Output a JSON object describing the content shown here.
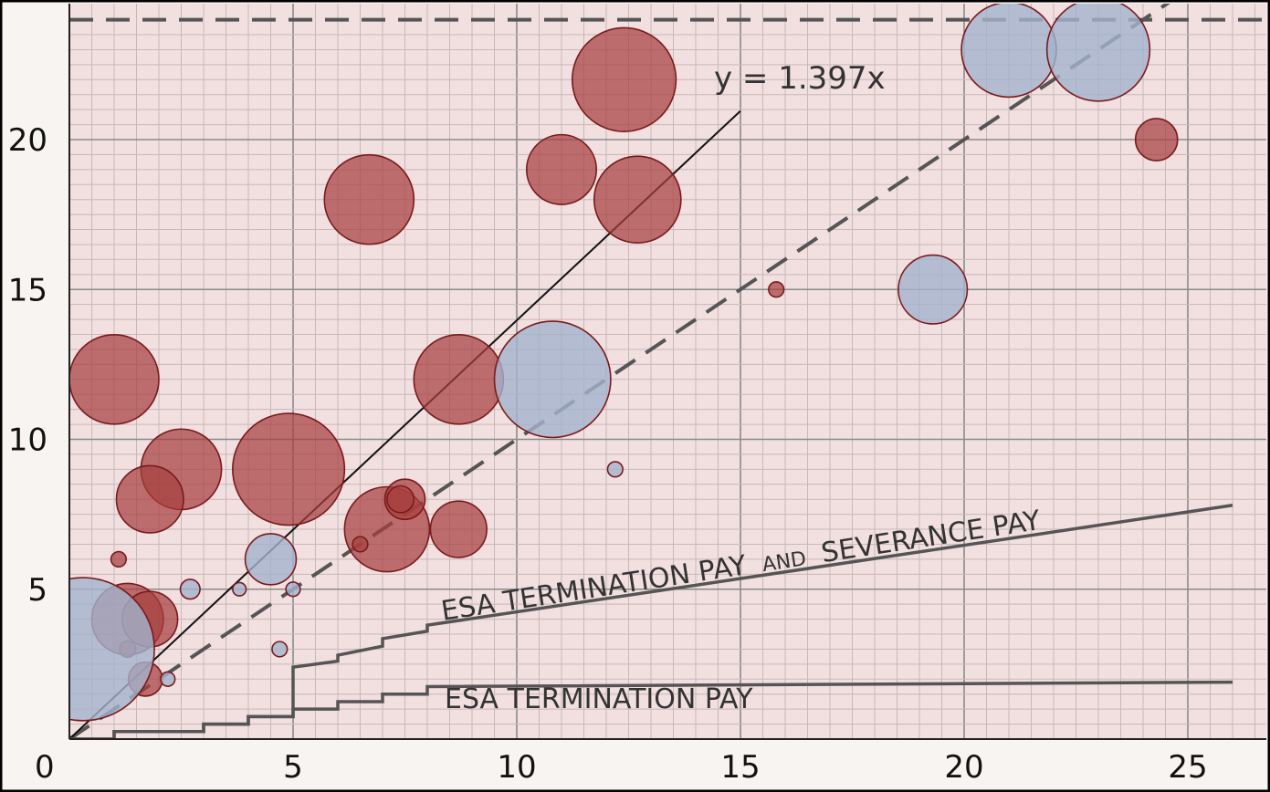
{
  "chart_data": {
    "type": "scatter",
    "title": "",
    "xlabel": "",
    "ylabel": "",
    "xlim": [
      0,
      26
    ],
    "ylim": [
      0,
      24
    ],
    "x_ticks": [
      "0",
      "5",
      "10",
      "15",
      "20",
      "25"
    ],
    "y_ticks": [
      "5",
      "10",
      "15",
      "20"
    ],
    "grid": true,
    "colors": {
      "red_fill": "#a6403f",
      "red_edge": "#7a1a1c",
      "blue_fill": "#a3b3cd",
      "blue_edge": "#7a1a1c",
      "plot_bg": "#f2dfe0",
      "grid_major": "#8a8a8a",
      "grid_minor": "#c8b8b8"
    },
    "bubbles": [
      {
        "x": 1.0,
        "y": 12,
        "r": 1.0,
        "group": "red"
      },
      {
        "x": 2.5,
        "y": 9,
        "r": 0.9,
        "group": "red"
      },
      {
        "x": 1.8,
        "y": 8,
        "r": 0.75,
        "group": "red"
      },
      {
        "x": 4.9,
        "y": 9,
        "r": 1.25,
        "group": "red"
      },
      {
        "x": 6.7,
        "y": 18,
        "r": 1.0,
        "group": "red"
      },
      {
        "x": 7.1,
        "y": 7,
        "r": 0.95,
        "group": "red"
      },
      {
        "x": 7.5,
        "y": 8,
        "r": 0.45,
        "group": "red"
      },
      {
        "x": 7.4,
        "y": 8,
        "r": 0.3,
        "group": "red"
      },
      {
        "x": 8.7,
        "y": 7,
        "r": 0.63,
        "group": "red"
      },
      {
        "x": 8.7,
        "y": 12,
        "r": 1.0,
        "group": "red"
      },
      {
        "x": 11.0,
        "y": 19,
        "r": 0.78,
        "group": "red"
      },
      {
        "x": 12.4,
        "y": 22,
        "r": 1.16,
        "group": "red"
      },
      {
        "x": 12.7,
        "y": 18,
        "r": 0.97,
        "group": "red"
      },
      {
        "x": 1.3,
        "y": 4,
        "r": 0.8,
        "group": "red"
      },
      {
        "x": 1.8,
        "y": 4,
        "r": 0.62,
        "group": "red"
      },
      {
        "x": 1.7,
        "y": 2,
        "r": 0.38,
        "group": "red"
      },
      {
        "x": 1.1,
        "y": 6,
        "r": 0.17,
        "group": "red"
      },
      {
        "x": 1.3,
        "y": 3,
        "r": 0.18,
        "group": "red"
      },
      {
        "x": 6.5,
        "y": 6.5,
        "r": 0.17,
        "group": "red"
      },
      {
        "x": 15.8,
        "y": 15,
        "r": 0.17,
        "group": "red"
      },
      {
        "x": 24.3,
        "y": 20,
        "r": 0.47,
        "group": "red"
      },
      {
        "x": 0.3,
        "y": 3,
        "r": 1.6,
        "group": "blue"
      },
      {
        "x": 4.5,
        "y": 6,
        "r": 0.57,
        "group": "blue"
      },
      {
        "x": 10.8,
        "y": 12,
        "r": 1.3,
        "group": "blue"
      },
      {
        "x": 19.3,
        "y": 15,
        "r": 0.77,
        "group": "blue"
      },
      {
        "x": 21.0,
        "y": 23,
        "r": 1.06,
        "group": "blue"
      },
      {
        "x": 23.0,
        "y": 23,
        "r": 1.15,
        "group": "blue"
      },
      {
        "x": 2.7,
        "y": 5,
        "r": 0.22,
        "group": "blue"
      },
      {
        "x": 3.8,
        "y": 5,
        "r": 0.15,
        "group": "blue"
      },
      {
        "x": 5.0,
        "y": 5,
        "r": 0.16,
        "group": "blue"
      },
      {
        "x": 4.7,
        "y": 3,
        "r": 0.17,
        "group": "blue"
      },
      {
        "x": 2.2,
        "y": 2,
        "r": 0.16,
        "group": "blue"
      },
      {
        "x": 12.2,
        "y": 9,
        "r": 0.17,
        "group": "blue"
      }
    ],
    "lines": {
      "fit": {
        "label": "y = 1.397x",
        "slope": 1.397,
        "x_range": [
          0,
          15
        ]
      },
      "identity": {
        "slope": 1,
        "x_range": [
          0,
          26
        ]
      },
      "ceiling": {
        "y": 24
      },
      "esa_termination": {
        "label": "ESA TERMINATION PAY",
        "points": [
          [
            0,
            0
          ],
          [
            1,
            0
          ],
          [
            1,
            0.25
          ],
          [
            3,
            0.25
          ],
          [
            3,
            0.5
          ],
          [
            4,
            0.5
          ],
          [
            4,
            0.75
          ],
          [
            5,
            0.75
          ],
          [
            5,
            1
          ],
          [
            6,
            1
          ],
          [
            6,
            1.25
          ],
          [
            7,
            1.25
          ],
          [
            7,
            1.5
          ],
          [
            8,
            1.5
          ],
          [
            8,
            1.75
          ],
          [
            26,
            1.9
          ]
        ]
      },
      "esa_severance": {
        "label_part1": "ESA TERMINATION PAY",
        "label_part2": "AND",
        "label_part3": "SEVERANCE PAY",
        "points": [
          [
            0,
            0
          ],
          [
            1,
            0
          ],
          [
            1,
            0.25
          ],
          [
            3,
            0.25
          ],
          [
            3,
            0.5
          ],
          [
            4,
            0.5
          ],
          [
            4,
            0.75
          ],
          [
            5,
            0.75
          ],
          [
            5,
            2.4
          ],
          [
            6,
            2.6
          ],
          [
            6,
            2.8
          ],
          [
            7,
            3.1
          ],
          [
            7,
            3.35
          ],
          [
            8,
            3.6
          ],
          [
            8,
            3.8
          ],
          [
            26,
            7.8
          ]
        ]
      }
    }
  }
}
